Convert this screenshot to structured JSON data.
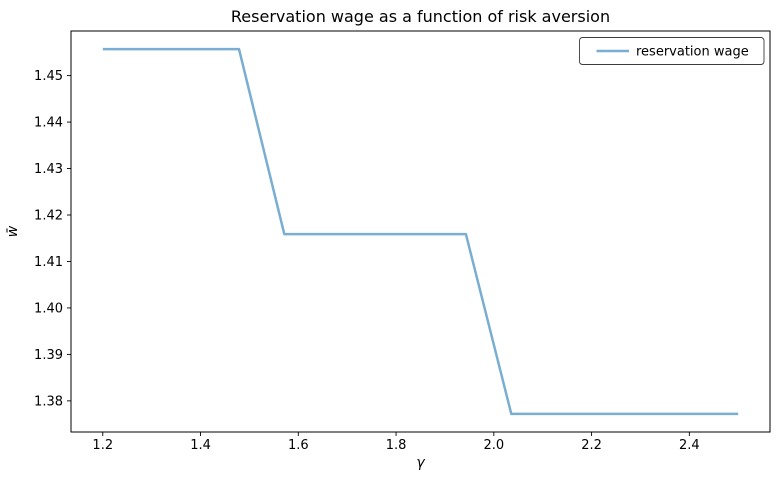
{
  "window": {
    "background": "#ffffff"
  },
  "colors": {
    "line": "#79aed2",
    "spine": "#000000",
    "text": "#000000",
    "legend_border": "#3c3c3c",
    "legend_background": "#ffffff"
  },
  "chart_data": {
    "type": "line",
    "title": "Reservation wage as a function of risk aversion",
    "xlabel": "γ",
    "ylabel": "w̄",
    "grid": false,
    "xlim": [
      1.135,
      2.565
    ],
    "ylim": [
      1.3733,
      1.4596
    ],
    "xticks": [
      1.2,
      1.4,
      1.6,
      1.8,
      2.0,
      2.2,
      2.4
    ],
    "xtick_labels": [
      "1.2",
      "1.4",
      "1.6",
      "1.8",
      "2.0",
      "2.2",
      "2.4"
    ],
    "yticks": [
      1.38,
      1.39,
      1.4,
      1.41,
      1.42,
      1.43,
      1.44,
      1.45
    ],
    "ytick_labels": [
      "1.38",
      "1.39",
      "1.40",
      "1.41",
      "1.42",
      "1.43",
      "1.44",
      "1.45"
    ],
    "legend": {
      "position": "upper-right",
      "entries": [
        {
          "label": "reservation wage",
          "color": "#79aed2"
        }
      ]
    },
    "series": [
      {
        "name": "reservation wage",
        "color": "#79aed2",
        "linewidth": 2.5,
        "x": [
          1.2,
          1.2929,
          1.3857,
          1.4786,
          1.5714,
          1.6643,
          1.7571,
          1.85,
          1.9429,
          2.0357,
          2.1286,
          2.2214,
          2.3143,
          2.4071,
          2.5
        ],
        "y": [
          1.4557,
          1.4557,
          1.4557,
          1.4557,
          1.4159,
          1.4159,
          1.4159,
          1.4159,
          1.4159,
          1.3772,
          1.3772,
          1.3772,
          1.3772,
          1.3772,
          1.3772
        ]
      }
    ]
  }
}
